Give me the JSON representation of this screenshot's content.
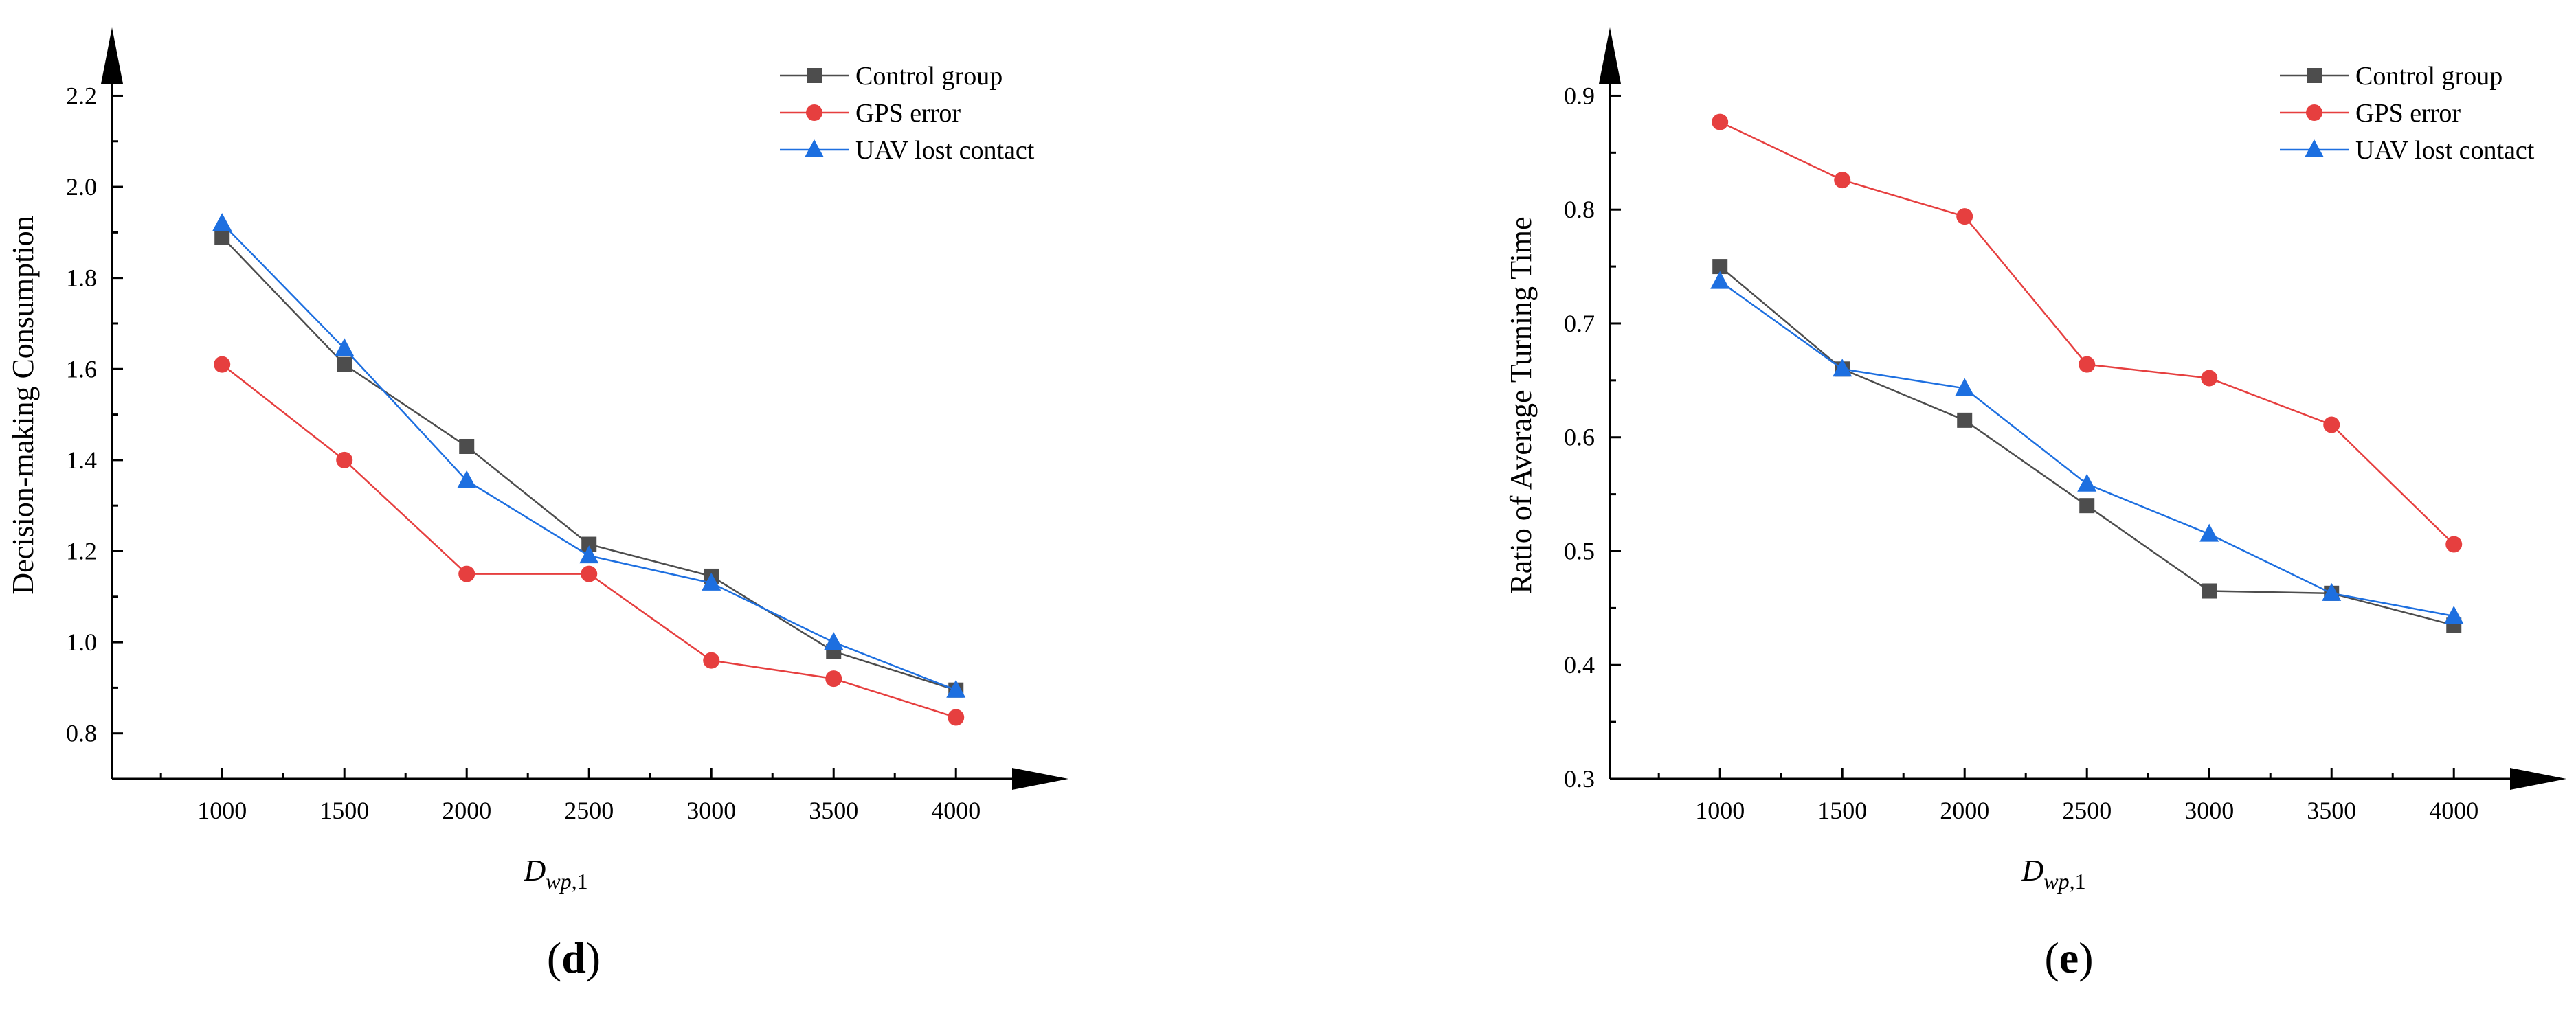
{
  "chart_data": [
    {
      "panel": "d",
      "type": "line",
      "title": "",
      "xlabel": "D",
      "xlabel_sub": "wp",
      "xlabel_suffix": ",1",
      "ylabel": "Decision-making Consumption",
      "x": [
        1000,
        1500,
        2000,
        2500,
        3000,
        3500,
        4000
      ],
      "xlim": [
        550,
        4460
      ],
      "ylim": [
        0.7,
        2.35
      ],
      "yticks": [
        0.8,
        1.0,
        1.2,
        1.4,
        1.6,
        1.8,
        2.0,
        2.2
      ],
      "ytick_labels": [
        "0.8",
        "1.0",
        "1.2",
        "1.4",
        "1.6",
        "1.8",
        "2.0",
        "2.2"
      ],
      "xtick_labels": [
        "1000",
        "1500",
        "2000",
        "2500",
        "3000",
        "3500",
        "4000"
      ],
      "legend_position": "top-right",
      "series": [
        {
          "name": "Control group",
          "marker": "square",
          "color": "#4d4d4d",
          "values": [
            1.89,
            1.61,
            1.43,
            1.215,
            1.145,
            0.98,
            0.895
          ]
        },
        {
          "name": "GPS error",
          "marker": "circle",
          "color": "#e63f3f",
          "values": [
            1.61,
            1.4,
            1.15,
            1.15,
            0.96,
            0.92,
            0.835
          ]
        },
        {
          "name": "UAV lost contact",
          "marker": "triangle",
          "color": "#1d6fe0",
          "values": [
            1.92,
            1.645,
            1.355,
            1.19,
            1.13,
            1.0,
            0.895
          ]
        }
      ]
    },
    {
      "panel": "e",
      "type": "line",
      "title": "",
      "xlabel": "D",
      "xlabel_sub": "wp",
      "xlabel_suffix": ",1",
      "ylabel": "Ratio of Average Turning Time",
      "x": [
        1000,
        1500,
        2000,
        2500,
        3000,
        3500,
        4000
      ],
      "xlim": [
        550,
        4460
      ],
      "ylim": [
        0.3,
        0.96
      ],
      "yticks": [
        0.3,
        0.4,
        0.5,
        0.6,
        0.7,
        0.8,
        0.9
      ],
      "ytick_labels": [
        "0.3",
        "0.4",
        "0.5",
        "0.6",
        "0.7",
        "0.8",
        "0.9"
      ],
      "xtick_labels": [
        "1000",
        "1500",
        "2000",
        "2500",
        "3000",
        "3500",
        "4000"
      ],
      "legend_position": "top-right",
      "series": [
        {
          "name": "Control group",
          "marker": "square",
          "color": "#4d4d4d",
          "values": [
            0.75,
            0.66,
            0.615,
            0.54,
            0.465,
            0.463,
            0.435
          ]
        },
        {
          "name": "GPS error",
          "marker": "circle",
          "color": "#e63f3f",
          "values": [
            0.877,
            0.826,
            0.794,
            0.664,
            0.652,
            0.611,
            0.506
          ]
        },
        {
          "name": "UAV lost contact",
          "marker": "triangle",
          "color": "#1d6fe0",
          "values": [
            0.737,
            0.66,
            0.643,
            0.559,
            0.515,
            0.463,
            0.443
          ]
        }
      ]
    }
  ],
  "panel_labels": [
    "d",
    "e"
  ]
}
